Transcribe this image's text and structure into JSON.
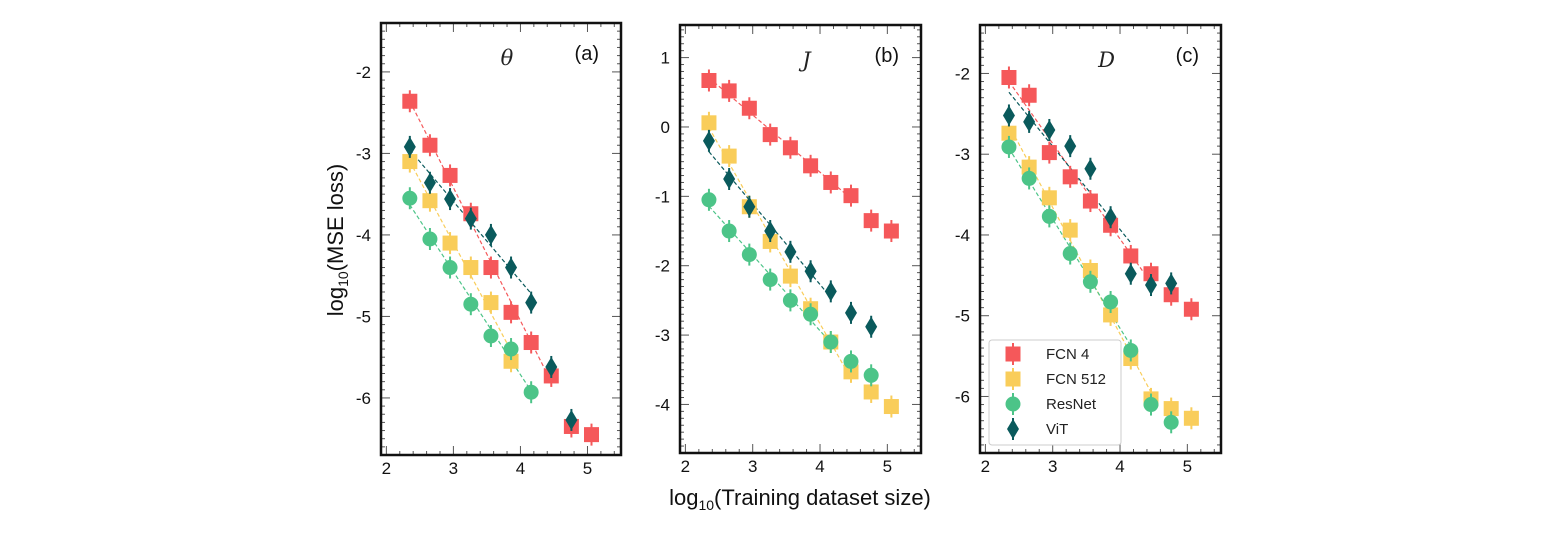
{
  "chart_data": [
    {
      "type": "scatter",
      "panel_label": "(a)",
      "variable": "θ",
      "xlim": [
        1.92,
        5.5
      ],
      "ylim": [
        -6.7,
        -1.4
      ],
      "xticks": [
        2,
        3,
        4,
        5
      ],
      "yticks": [
        -2,
        -3,
        -4,
        -5,
        -6
      ],
      "series": [
        {
          "name": "FCN 4",
          "color": "#f5585a",
          "marker": "square",
          "fit_range": [
            2.35,
            4.46
          ],
          "x": [
            2.35,
            2.65,
            2.95,
            3.26,
            3.56,
            3.86,
            4.16,
            4.46,
            4.76,
            5.06
          ],
          "y": [
            -2.36,
            -2.9,
            -3.27,
            -3.74,
            -4.4,
            -4.95,
            -5.32,
            -5.73,
            -6.35,
            -6.45
          ]
        },
        {
          "name": "FCN 512",
          "color": "#f9cd5a",
          "marker": "square",
          "fit_range": [
            2.35,
            3.86
          ],
          "x": [
            2.35,
            2.65,
            2.95,
            3.26,
            3.56,
            3.86
          ],
          "y": [
            -3.1,
            -3.58,
            -4.1,
            -4.4,
            -4.83,
            -5.55
          ]
        },
        {
          "name": "ResNet",
          "color": "#4cc488",
          "marker": "circle",
          "fit_range": [
            2.35,
            4.16
          ],
          "x": [
            2.35,
            2.65,
            2.95,
            3.26,
            3.56,
            3.86,
            4.16
          ],
          "y": [
            -3.55,
            -4.05,
            -4.4,
            -4.85,
            -5.24,
            -5.4,
            -5.93
          ]
        },
        {
          "name": "ViT",
          "color": "#0a5a5c",
          "marker": "diamond",
          "fit_range": [
            2.35,
            4.16
          ],
          "x": [
            2.35,
            2.65,
            2.95,
            3.26,
            3.56,
            3.86,
            4.16,
            4.46,
            4.76
          ],
          "y": [
            -2.92,
            -3.36,
            -3.56,
            -3.8,
            -4.0,
            -4.4,
            -4.83,
            -5.62,
            -6.27
          ]
        }
      ]
    },
    {
      "type": "scatter",
      "panel_label": "(b)",
      "variable": "J",
      "xlim": [
        1.92,
        5.5
      ],
      "ylim": [
        -4.7,
        1.47
      ],
      "xticks": [
        2,
        3,
        4,
        5
      ],
      "yticks": [
        1,
        0,
        -1,
        -2,
        -3,
        -4
      ],
      "series": [
        {
          "name": "FCN 4",
          "color": "#f5585a",
          "marker": "square",
          "fit_range": [
            2.35,
            4.46
          ],
          "x": [
            2.35,
            2.65,
            2.95,
            3.26,
            3.56,
            3.86,
            4.16,
            4.46,
            4.76,
            5.06
          ],
          "y": [
            0.67,
            0.52,
            0.27,
            -0.11,
            -0.3,
            -0.56,
            -0.8,
            -0.99,
            -1.35,
            -1.5
          ]
        },
        {
          "name": "FCN 512",
          "color": "#f9cd5a",
          "marker": "square",
          "fit_range": [
            2.35,
            4.46
          ],
          "x": [
            2.35,
            2.65,
            2.95,
            3.26,
            3.56,
            3.86,
            4.16,
            4.46,
            4.76,
            5.06
          ],
          "y": [
            0.06,
            -0.42,
            -1.15,
            -1.65,
            -2.15,
            -2.62,
            -3.1,
            -3.53,
            -3.82,
            -4.03
          ]
        },
        {
          "name": "ResNet",
          "color": "#4cc488",
          "marker": "circle",
          "fit_range": [
            2.35,
            4.16
          ],
          "x": [
            2.35,
            2.65,
            2.95,
            3.26,
            3.56,
            3.86,
            4.16,
            4.46,
            4.76
          ],
          "y": [
            -1.05,
            -1.5,
            -1.84,
            -2.2,
            -2.5,
            -2.7,
            -3.1,
            -3.38,
            -3.58
          ]
        },
        {
          "name": "ViT",
          "color": "#0a5a5c",
          "marker": "diamond",
          "fit_range": [
            2.35,
            4.16
          ],
          "x": [
            2.35,
            2.65,
            2.95,
            3.26,
            3.56,
            3.86,
            4.16,
            4.46,
            4.76
          ],
          "y": [
            -0.2,
            -0.75,
            -1.15,
            -1.5,
            -1.8,
            -2.08,
            -2.37,
            -2.68,
            -2.88
          ]
        }
      ]
    },
    {
      "type": "scatter",
      "panel_label": "(c)",
      "variable": "D",
      "xlim": [
        1.92,
        5.5
      ],
      "ylim": [
        -6.7,
        -1.4
      ],
      "xticks": [
        2,
        3,
        4,
        5
      ],
      "yticks": [
        -2,
        -3,
        -4,
        -5,
        -6
      ],
      "legend": "bottom-left",
      "series": [
        {
          "name": "FCN 4",
          "color": "#f5585a",
          "marker": "square",
          "fit_range": [
            2.35,
            4.46
          ],
          "x": [
            2.35,
            2.65,
            2.95,
            3.26,
            3.56,
            3.86,
            4.16,
            4.46,
            4.76,
            5.06
          ],
          "y": [
            -2.05,
            -2.27,
            -2.98,
            -3.28,
            -3.58,
            -3.88,
            -4.26,
            -4.48,
            -4.74,
            -4.92
          ]
        },
        {
          "name": "FCN 512",
          "color": "#f9cd5a",
          "marker": "square",
          "fit_range": [
            2.35,
            4.46
          ],
          "x": [
            2.35,
            2.65,
            2.95,
            3.26,
            3.56,
            3.86,
            4.16,
            4.46,
            4.76,
            5.06
          ],
          "y": [
            -2.74,
            -3.16,
            -3.54,
            -3.94,
            -4.44,
            -4.99,
            -5.53,
            -6.03,
            -6.15,
            -6.27
          ]
        },
        {
          "name": "ResNet",
          "color": "#4cc488",
          "marker": "circle",
          "fit_range": [
            2.35,
            4.16
          ],
          "x": [
            2.35,
            2.65,
            2.95,
            3.26,
            3.56,
            3.86,
            4.16,
            4.46,
            4.76
          ],
          "y": [
            -2.91,
            -3.3,
            -3.77,
            -4.23,
            -4.58,
            -4.83,
            -5.43,
            -6.1,
            -6.32
          ]
        },
        {
          "name": "ViT",
          "color": "#0a5a5c",
          "marker": "diamond",
          "fit_range": [
            2.35,
            4.16
          ],
          "x": [
            2.35,
            2.65,
            2.95,
            3.26,
            3.56,
            3.86,
            4.16,
            4.46,
            4.76
          ],
          "y": [
            -2.52,
            -2.6,
            -2.7,
            -2.9,
            -3.18,
            -3.78,
            -4.48,
            -4.62,
            -4.6
          ]
        }
      ]
    }
  ],
  "ylabel": "log10(MSE loss)",
  "xlabel": "log10(Training dataset size)"
}
